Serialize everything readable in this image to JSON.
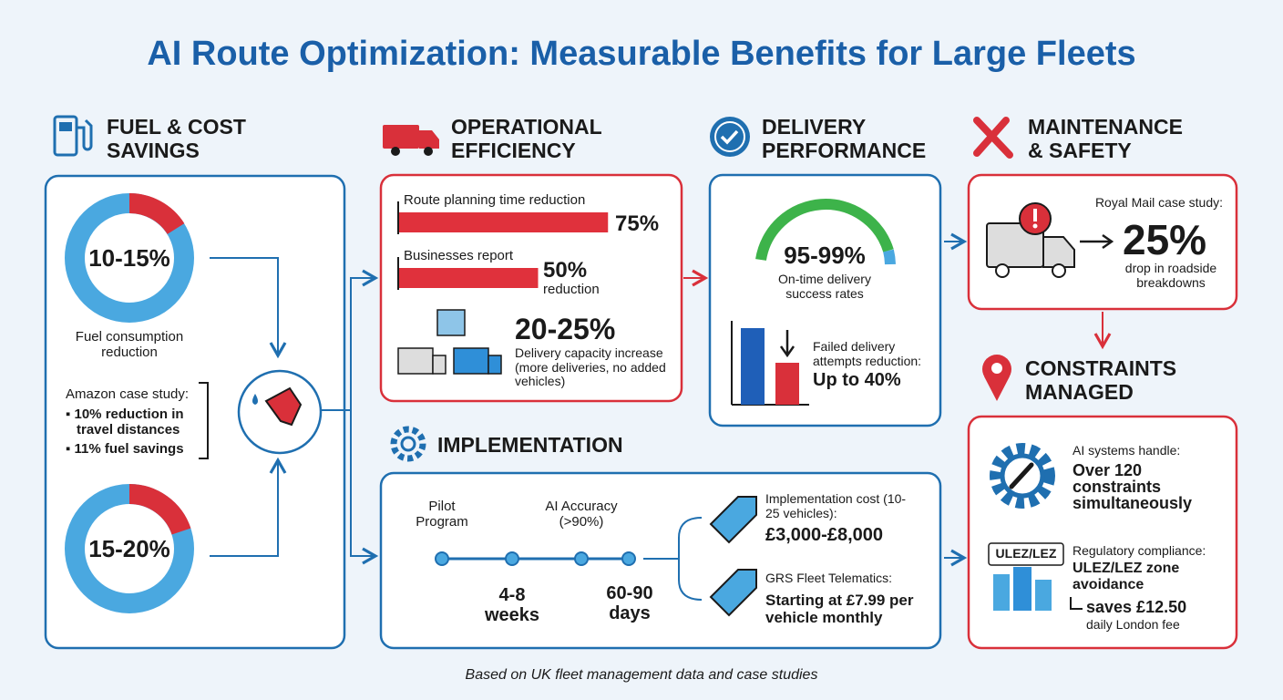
{
  "title": "AI Route Optimization: Measurable Benefits for Large Fleets",
  "fuel": {
    "heading": "FUEL & COST SAVINGS",
    "stat1": "10-15%",
    "stat1_label": "Fuel consumption reduction",
    "case_title": "Amazon case study:",
    "case_items": [
      "10% reduction in travel distances",
      "11% fuel savings"
    ],
    "stat2": "15-20%"
  },
  "operational": {
    "heading": "OPERATIONAL EFFICIENCY",
    "bars": [
      {
        "label": "Route planning time reduction",
        "value": 75,
        "value_label": "75%"
      },
      {
        "label": "Businesses report",
        "value": 50,
        "value_label": "50%",
        "note": "reduction"
      }
    ],
    "capacity": "20-25%",
    "capacity_label": "Delivery capacity increase (more deliveries, no added vehicles)"
  },
  "delivery": {
    "heading": "DELIVERY PERFORMANCE",
    "gauge": "95-99%",
    "gauge_label": "On-time delivery success rates",
    "failed_label": "Failed delivery attempts reduction:",
    "failed_value": "Up to 40%"
  },
  "maintenance": {
    "heading": "MAINTENANCE & SAFETY",
    "case": "Royal Mail case study:",
    "value": "25%",
    "label": "drop in roadside breakdowns"
  },
  "constraints": {
    "heading": "CONSTRAINTS MANAGED",
    "ai_label": "AI systems handle:",
    "ai_value": "Over 120 constraints simultaneously",
    "badge": "ULEZ/LEZ",
    "reg_label": "Regulatory compliance:",
    "reg_value": "ULEZ/LEZ zone avoidance",
    "saves": "saves £12.50",
    "saves_note": "daily London fee"
  },
  "implementation": {
    "heading": "IMPLEMENTATION",
    "milestones_top": [
      "Pilot Program",
      "AI Accuracy (>90%)"
    ],
    "milestones_bottom": [
      "4-8 weeks",
      "60-90 days"
    ],
    "cost_label": "Implementation cost (10-25 vehicles):",
    "cost_value": "£3,000-£8,000",
    "grs_label": "GRS Fleet Telematics:",
    "grs_value": "Starting at £7.99 per vehicle monthly"
  },
  "footer": "Based on UK fleet management data and case studies"
}
